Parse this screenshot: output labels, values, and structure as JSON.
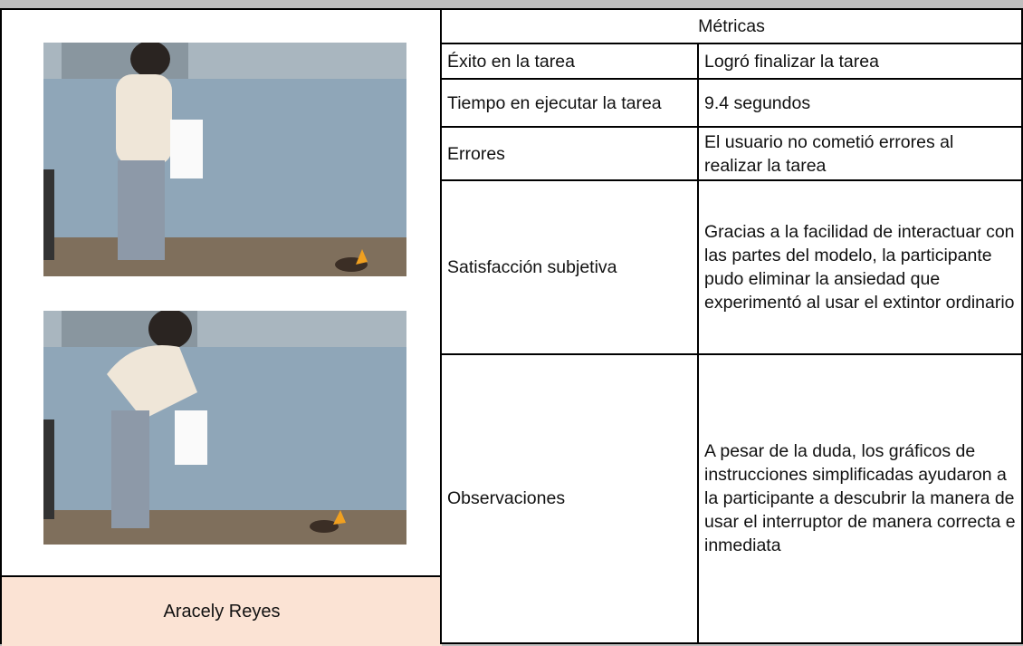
{
  "header": {
    "title": "Métricas"
  },
  "participant": {
    "name": "Aracely Reyes"
  },
  "table": {
    "rows": [
      [
        "Éxito en la tarea",
        "Logró finalizar la tarea"
      ],
      [
        "Tiempo en ejecutar la tarea",
        "9.4 segundos"
      ],
      [
        "Errores",
        "El usuario no cometió errores al realizar la tarea"
      ],
      [
        "Satisfacción subjetiva",
        "Gracias a la facilidad de interactuar con las partes del modelo, la participante pudo eliminar la ansiedad que experimentó al usar el extintor ordinario"
      ],
      [
        "Observaciones",
        "A pesar de la duda, los gráficos de instrucciones simplificadas ayudaron a la participante a descubrir la manera de usar el interruptor de manera correcta e inmediata"
      ]
    ]
  }
}
